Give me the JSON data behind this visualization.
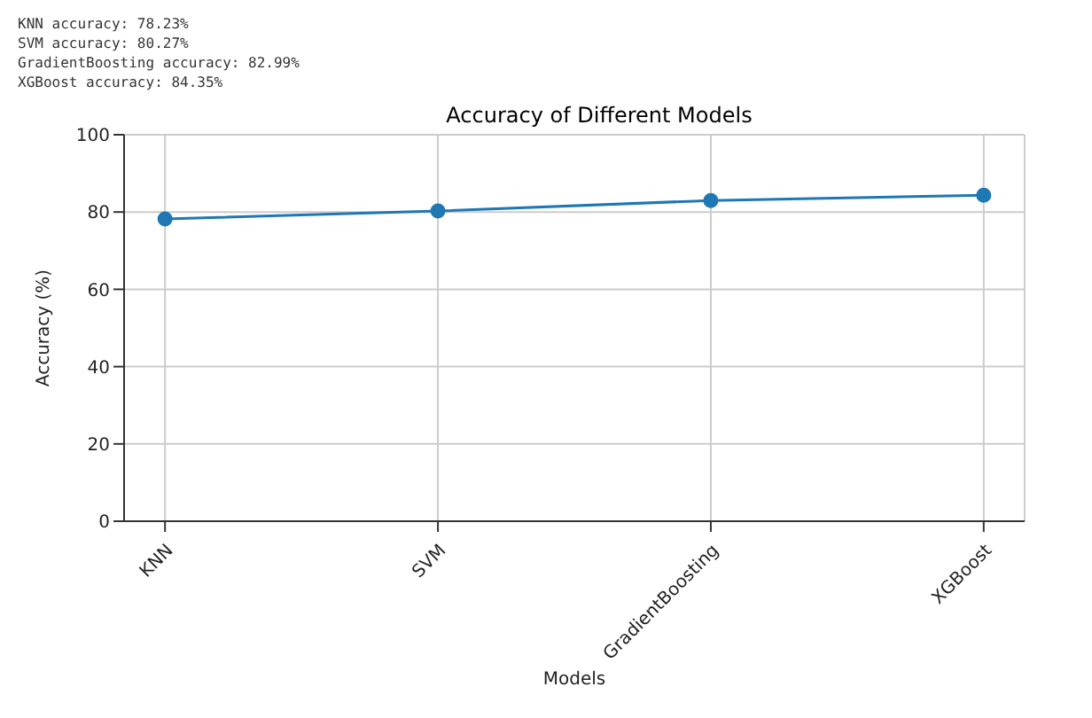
{
  "chart_data": {
    "type": "line",
    "title": "Accuracy of Different Models",
    "xlabel": "Models",
    "ylabel": "Accuracy (%)",
    "categories": [
      "KNN",
      "SVM",
      "GradientBoosting",
      "XGBoost"
    ],
    "series": [
      {
        "color": "#1f77b4",
        "values": [
          78.23,
          80.27,
          82.99,
          84.35
        ]
      }
    ],
    "ylim": [
      0,
      100
    ],
    "yticks": [
      0,
      20,
      40,
      60,
      80,
      100
    ],
    "grid": true,
    "marker": "circle",
    "line_style": "solid",
    "annotations": [
      "KNN accuracy: 78.23%",
      "SVM accuracy: 80.27%",
      "GradientBoosting accuracy: 82.99%",
      "XGBoost accuracy: 84.35%"
    ]
  }
}
